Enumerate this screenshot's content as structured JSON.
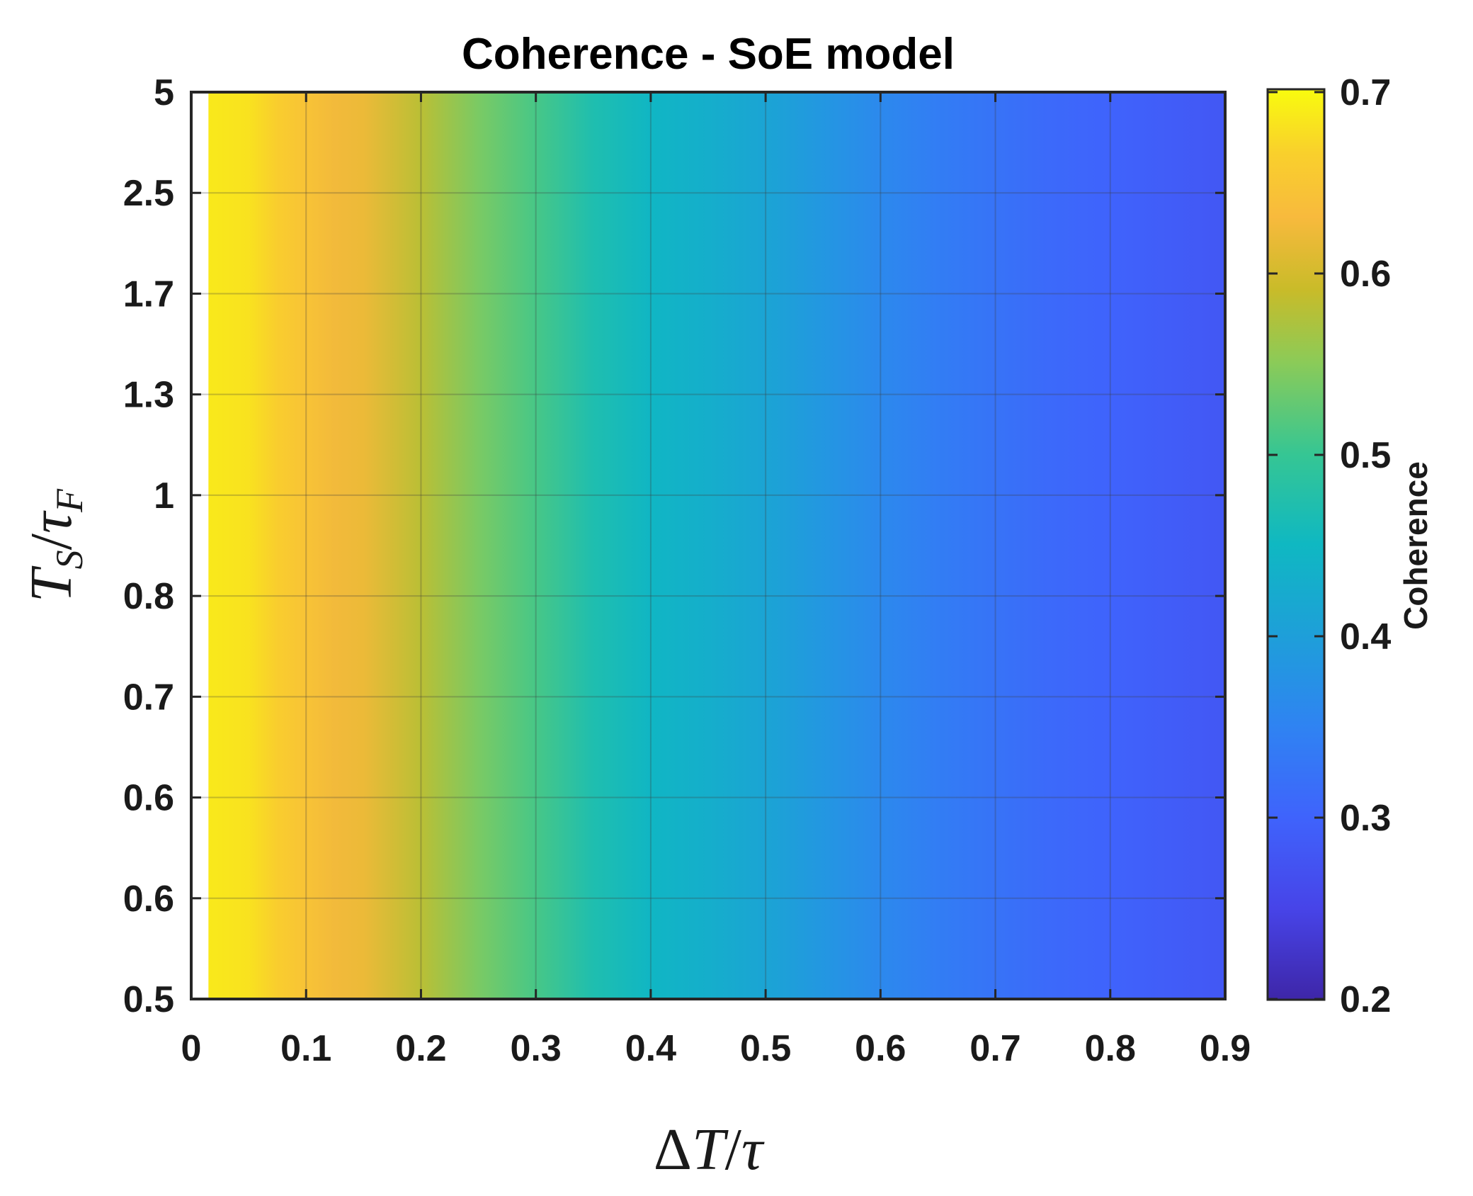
{
  "chart_data": {
    "type": "heatmap",
    "title": "Coherence - SoE model",
    "xlabel": {
      "parts": [
        "Δ",
        "T",
        "/",
        "τ"
      ]
    },
    "ylabel": {
      "T": "T",
      "T_sub": "S",
      "slash": "/",
      "tau": "τ",
      "tau_sub": "F"
    },
    "x_ticks": [
      "0",
      "0.1",
      "0.2",
      "0.3",
      "0.4",
      "0.5",
      "0.6",
      "0.7",
      "0.8",
      "0.9"
    ],
    "xlim": [
      0,
      0.9
    ],
    "y_tick_labels": [
      "0.5",
      "0.6",
      "0.6",
      "0.7",
      "0.8",
      "1",
      "1.3",
      "1.7",
      "2.5",
      "5"
    ],
    "grid": true,
    "data_x_start": 0.015,
    "coherence_profile": {
      "x": [
        0.015,
        0.05,
        0.075,
        0.1,
        0.125,
        0.15,
        0.2,
        0.25,
        0.3,
        0.35,
        0.4,
        0.45,
        0.5,
        0.55,
        0.6,
        0.65,
        0.7,
        0.75,
        0.8,
        0.85,
        0.9
      ],
      "values": [
        0.685,
        0.68,
        0.66,
        0.645,
        0.625,
        0.62,
        0.58,
        0.54,
        0.51,
        0.47,
        0.445,
        0.43,
        0.41,
        0.385,
        0.36,
        0.34,
        0.325,
        0.31,
        0.3,
        0.29,
        0.28
      ]
    },
    "colorbar": {
      "label": "Coherence",
      "ticks": [
        "0.2",
        "0.3",
        "0.4",
        "0.5",
        "0.6",
        "0.7"
      ],
      "range": [
        0.2,
        0.7
      ],
      "colormap": "parula",
      "stops": [
        {
          "v": 0.0,
          "c": "#3e26a8"
        },
        {
          "v": 0.1,
          "c": "#4744e8"
        },
        {
          "v": 0.2,
          "c": "#3f63fc"
        },
        {
          "v": 0.3,
          "c": "#2f83f2"
        },
        {
          "v": 0.4,
          "c": "#1e9fd9"
        },
        {
          "v": 0.5,
          "c": "#0fb8c2"
        },
        {
          "v": 0.6,
          "c": "#36c693"
        },
        {
          "v": 0.7,
          "c": "#8bcb58"
        },
        {
          "v": 0.78,
          "c": "#c9bb29"
        },
        {
          "v": 0.86,
          "c": "#f8ba3d"
        },
        {
          "v": 0.93,
          "c": "#f9d02c"
        },
        {
          "v": 1.0,
          "c": "#f9fb0e"
        }
      ]
    }
  }
}
